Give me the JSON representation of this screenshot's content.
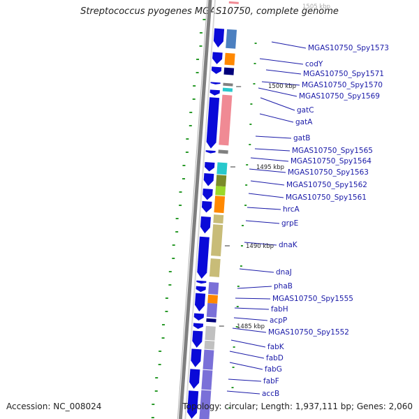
{
  "title": "Streptococcus pyogenes MGAS10750, complete genome",
  "accession_text": "Accession: NC_008024",
  "summary_text": "Topology: circular; Length: 1,937,111 bp; Genes: 2,060",
  "colors": {
    "forward_cds": "#0a0ad8",
    "light_blue": "#4c80c0",
    "orange": "#ff8800",
    "navy": "#00007a",
    "cyan": "#28c8cc",
    "pink": "#f08a94",
    "grey": "#808080",
    "olive": "#7a8a2a",
    "lime": "#9ad82a",
    "khaki": "#c8bc78",
    "purple": "#7a70d8",
    "light_grey": "#c0c0c0",
    "gc_skew": "#2a9a2a",
    "label": "#1a1aa8"
  },
  "kbp_labels": [
    {
      "text": "1505 kbp",
      "faint": true
    },
    {
      "text": "1500 kbp",
      "faint": false
    },
    {
      "text": "1495 kbp",
      "faint": false
    },
    {
      "text": "1490 kbp",
      "faint": false
    },
    {
      "text": "1485 kbp",
      "faint": false
    }
  ],
  "genes": [
    "MGAS10750_Spy1573",
    "codY",
    "MGAS10750_Spy1571",
    "MGAS10750_Spy1570",
    "MGAS10750_Spy1569",
    "gatC",
    "gatA",
    "gatB",
    "MGAS10750_Spy1565",
    "MGAS10750_Spy1564",
    "MGAS10750_Spy1563",
    "MGAS10750_Spy1562",
    "MGAS10750_Spy1561",
    "hrcA",
    "grpE",
    "dnaK",
    "dnaJ",
    "phaB",
    "MGAS10750_Spy1555",
    "fabH",
    "acpP",
    "MGAS10750_Spy1552",
    "fabK",
    "fabD",
    "fabG",
    "fabF",
    "accB"
  ]
}
